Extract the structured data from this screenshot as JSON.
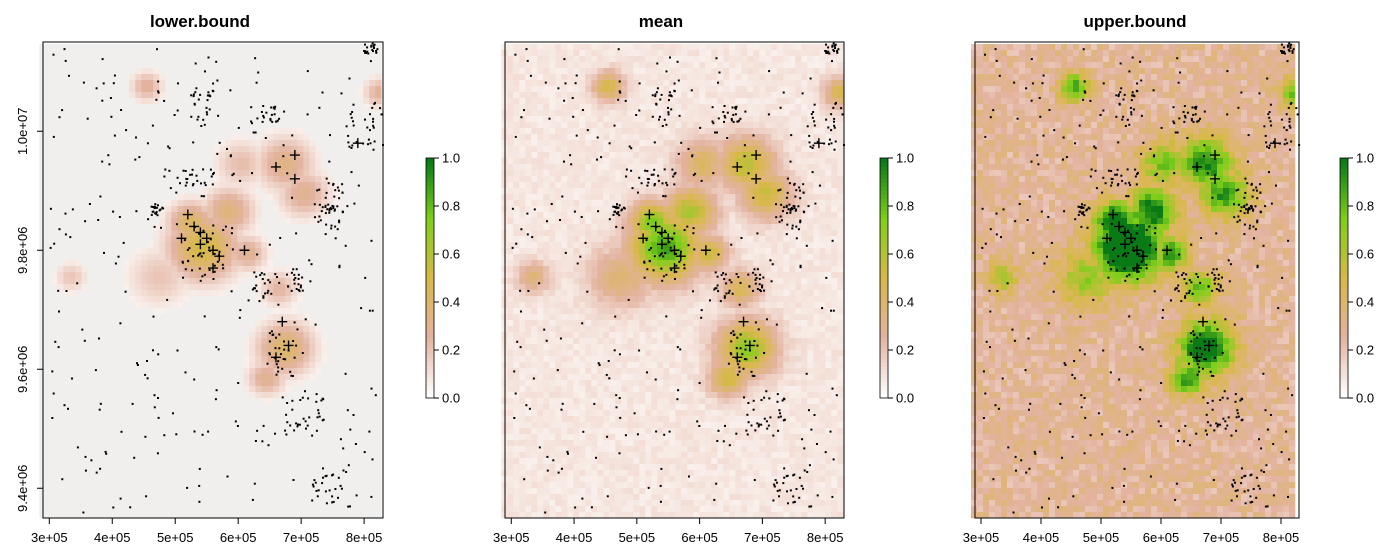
{
  "chart_data": [
    {
      "type": "heatmap",
      "title": "lower.bound",
      "xlabel": "",
      "ylabel": "",
      "xlim": [
        290000,
        830000
      ],
      "ylim": [
        9350000,
        10150000
      ],
      "x_ticks": [
        "3e+05",
        "4e+05",
        "5e+05",
        "6e+05",
        "7e+05",
        "8e+05"
      ],
      "y_ticks": [
        "9.4e+06",
        "9.6e+06",
        "9.8e+06",
        "1.0e+07"
      ],
      "colorbar": {
        "range": [
          0,
          1
        ],
        "ticks": [
          "0.0",
          "0.2",
          "0.4",
          "0.6",
          "0.8",
          "1.0"
        ],
        "colors": [
          "#ffffff",
          "#e3b3a0",
          "#d9b84a",
          "#7fcf1a",
          "#0a7a17"
        ]
      },
      "intensity": 0.35
    },
    {
      "type": "heatmap",
      "title": "mean",
      "xlabel": "",
      "ylabel": "",
      "xlim": [
        290000,
        830000
      ],
      "ylim": [
        9350000,
        10150000
      ],
      "x_ticks": [
        "3e+05",
        "4e+05",
        "5e+05",
        "6e+05",
        "7e+05",
        "8e+05"
      ],
      "y_ticks": [],
      "colorbar": {
        "range": [
          0,
          1
        ],
        "ticks": [
          "0.0",
          "0.2",
          "0.4",
          "0.6",
          "0.8",
          "1.0"
        ],
        "colors": [
          "#ffffff",
          "#e3b3a0",
          "#d9b84a",
          "#7fcf1a",
          "#0a7a17"
        ]
      },
      "intensity": 0.65
    },
    {
      "type": "heatmap",
      "title": "upper.bound",
      "xlabel": "",
      "ylabel": "",
      "xlim": [
        290000,
        830000
      ],
      "ylim": [
        9350000,
        10150000
      ],
      "x_ticks": [
        "3e+05",
        "4e+05",
        "5e+05",
        "6e+05",
        "7e+05",
        "8e+05"
      ],
      "y_ticks": [],
      "colorbar": {
        "range": [
          0,
          1
        ],
        "ticks": [
          "0.0",
          "0.2",
          "0.4",
          "0.6",
          "0.8",
          "1.0"
        ],
        "colors": [
          "#ffffff",
          "#e3b3a0",
          "#d9b84a",
          "#7fcf1a",
          "#0a7a17"
        ]
      },
      "intensity": 1.0
    }
  ],
  "hotspots": [
    {
      "x": 540000,
      "y": 9810000,
      "r": 55000,
      "v": 0.95
    },
    {
      "x": 520000,
      "y": 9850000,
      "r": 35000,
      "v": 0.8
    },
    {
      "x": 610000,
      "y": 9800000,
      "r": 30000,
      "v": 0.55
    },
    {
      "x": 670000,
      "y": 9950000,
      "r": 45000,
      "v": 0.6
    },
    {
      "x": 700000,
      "y": 9900000,
      "r": 40000,
      "v": 0.55
    },
    {
      "x": 670000,
      "y": 9640000,
      "r": 45000,
      "v": 0.75
    },
    {
      "x": 640000,
      "y": 9590000,
      "r": 30000,
      "v": 0.55
    },
    {
      "x": 660000,
      "y": 9740000,
      "r": 30000,
      "v": 0.45
    },
    {
      "x": 470000,
      "y": 9760000,
      "r": 50000,
      "v": 0.35
    },
    {
      "x": 450000,
      "y": 10080000,
      "r": 25000,
      "v": 0.5
    },
    {
      "x": 820000,
      "y": 10070000,
      "r": 25000,
      "v": 0.5
    },
    {
      "x": 600000,
      "y": 9950000,
      "r": 40000,
      "v": 0.4
    },
    {
      "x": 330000,
      "y": 9760000,
      "r": 25000,
      "v": 0.35
    },
    {
      "x": 580000,
      "y": 9870000,
      "r": 40000,
      "v": 0.65
    }
  ],
  "points": {
    "crosses": [
      [
        520000,
        9860000
      ],
      [
        530000,
        9840000
      ],
      [
        540000,
        9830000
      ],
      [
        550000,
        9820000
      ],
      [
        510000,
        9820000
      ],
      [
        560000,
        9800000
      ],
      [
        560000,
        9770000
      ],
      [
        660000,
        9940000
      ],
      [
        690000,
        9960000
      ],
      [
        690000,
        9920000
      ],
      [
        670000,
        9680000
      ],
      [
        680000,
        9640000
      ],
      [
        660000,
        9620000
      ],
      [
        540000,
        9810000
      ],
      [
        570000,
        9790000
      ],
      [
        610000,
        9800000
      ],
      [
        790000,
        9980000
      ]
    ],
    "clusters": [
      [
        520000,
        9920000,
        40000,
        18000
      ],
      [
        550000,
        9800000,
        40000,
        50000
      ],
      [
        640000,
        9740000,
        25000,
        25000
      ],
      [
        690000,
        9750000,
        15000,
        20000
      ],
      [
        670000,
        9630000,
        25000,
        40000
      ],
      [
        640000,
        10030000,
        25000,
        15000
      ],
      [
        800000,
        10010000,
        30000,
        40000
      ],
      [
        740000,
        9850000,
        20000,
        30000
      ],
      [
        750000,
        9890000,
        15000,
        25000
      ],
      [
        810000,
        10140000,
        12000,
        10000
      ],
      [
        700000,
        9520000,
        35000,
        35000
      ],
      [
        740000,
        9400000,
        25000,
        25000
      ],
      [
        540000,
        10040000,
        20000,
        30000
      ],
      [
        470000,
        9870000,
        10000,
        10000
      ]
    ]
  }
}
